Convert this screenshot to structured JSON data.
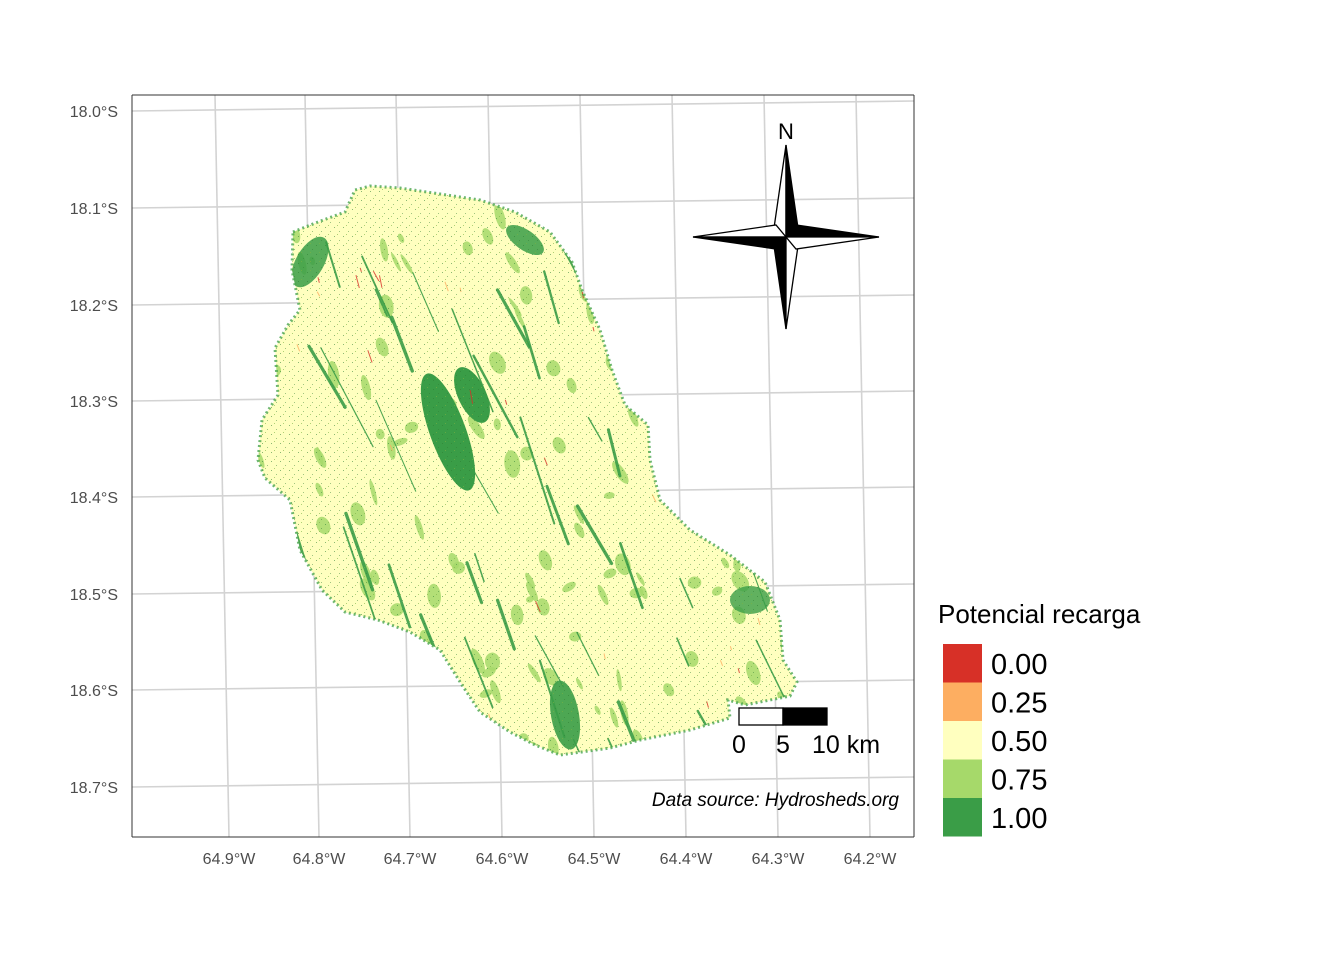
{
  "map": {
    "lat_ticks": [
      "18.0°S",
      "18.1°S",
      "18.2°S",
      "18.3°S",
      "18.4°S",
      "18.5°S",
      "18.6°S",
      "18.7°S"
    ],
    "lon_ticks": [
      "64.9°W",
      "64.8°W",
      "64.7°W",
      "64.6°W",
      "64.5°W",
      "64.4°W",
      "64.3°W",
      "64.2°W"
    ],
    "north_label": "N",
    "scale_bar": {
      "labels": [
        "0",
        "5",
        "10 km"
      ]
    },
    "data_source": "Data source: Hydrosheds.org"
  },
  "legend": {
    "title": "Potencial recarga",
    "items": [
      {
        "label": "0.00",
        "color": "#d73027"
      },
      {
        "label": "0.25",
        "color": "#fdae61"
      },
      {
        "label": "0.50",
        "color": "#ffffbf"
      },
      {
        "label": "0.75",
        "color": "#a6d96a"
      },
      {
        "label": "1.00",
        "color": "#3a9d47"
      }
    ]
  }
}
